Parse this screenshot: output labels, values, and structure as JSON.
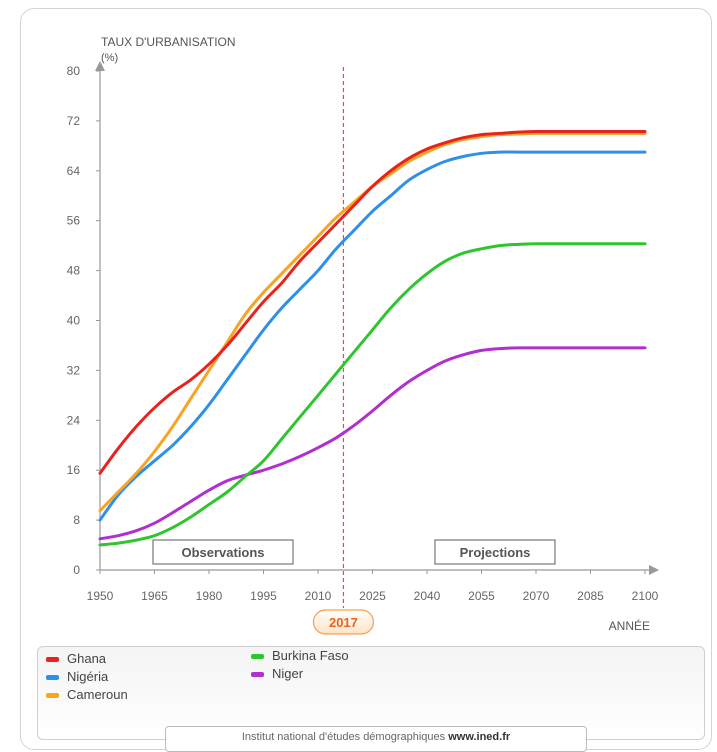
{
  "chart_data": {
    "type": "line",
    "ylabel_line1": "TAUX D'URBANISATION",
    "ylabel_line2": "(%)",
    "xlabel": "ANNÉE",
    "ylim": [
      0,
      80
    ],
    "xlim": [
      1950,
      2100
    ],
    "yticks": [
      0,
      8,
      16,
      24,
      32,
      40,
      48,
      56,
      64,
      72,
      80
    ],
    "xticks": [
      1950,
      1965,
      1980,
      1995,
      2010,
      2025,
      2040,
      2055,
      2070,
      2085,
      2100
    ],
    "marker_year": 2017,
    "marker_label": "2017",
    "region_labels": {
      "left": "Observations",
      "right": "Projections"
    },
    "series": [
      {
        "name": "Ghana",
        "color": "#e8231e",
        "x": [
          1950,
          1955,
          1960,
          1965,
          1970,
          1975,
          1980,
          1985,
          1990,
          1995,
          2000,
          2005,
          2010,
          2015,
          2020,
          2025,
          2030,
          2035,
          2040,
          2045,
          2050,
          2055,
          2060,
          2065,
          2070,
          2075,
          2080,
          2085,
          2090,
          2095,
          2100
        ],
        "y": [
          15.5,
          19.5,
          23,
          26,
          28.5,
          30.5,
          33,
          36,
          39.5,
          43,
          46,
          49.5,
          52.5,
          55.5,
          58.5,
          61.5,
          64,
          66,
          67.5,
          68.5,
          69.3,
          69.8,
          70,
          70.2,
          70.3,
          70.3,
          70.3,
          70.3,
          70.3,
          70.3,
          70.3
        ]
      },
      {
        "name": "Nigéria",
        "color": "#2f90e8",
        "x": [
          1950,
          1955,
          1960,
          1965,
          1970,
          1975,
          1980,
          1985,
          1990,
          1995,
          2000,
          2005,
          2010,
          2015,
          2020,
          2025,
          2030,
          2035,
          2040,
          2045,
          2050,
          2055,
          2060,
          2065,
          2070,
          2075,
          2080,
          2085,
          2090,
          2095,
          2100
        ],
        "y": [
          8,
          12,
          15,
          17.5,
          20,
          23,
          26.5,
          30.5,
          34.5,
          38.5,
          42,
          45,
          48,
          51.5,
          54.5,
          57.5,
          60,
          62.5,
          64.2,
          65.5,
          66.3,
          66.8,
          67,
          67,
          67,
          67,
          67,
          67,
          67,
          67,
          67
        ]
      },
      {
        "name": "Cameroun",
        "color": "#f8a422",
        "x": [
          1950,
          1955,
          1960,
          1965,
          1970,
          1975,
          1980,
          1985,
          1990,
          1995,
          2000,
          2005,
          2010,
          2015,
          2020,
          2025,
          2030,
          2035,
          2040,
          2045,
          2050,
          2055,
          2060,
          2065,
          2070,
          2075,
          2080,
          2085,
          2090,
          2095,
          2100
        ],
        "y": [
          9.5,
          12.5,
          15.5,
          19,
          23,
          27.5,
          32,
          36.5,
          41,
          44.5,
          47.5,
          50.5,
          53.5,
          56.5,
          59,
          61.5,
          63.5,
          65.5,
          67,
          68.2,
          69,
          69.5,
          69.8,
          69.9,
          70,
          70,
          70,
          70,
          70,
          70,
          70
        ]
      },
      {
        "name": "Burkina Faso",
        "color": "#2fc52f",
        "x": [
          1950,
          1955,
          1960,
          1965,
          1970,
          1975,
          1980,
          1985,
          1990,
          1995,
          2000,
          2005,
          2010,
          2015,
          2020,
          2025,
          2030,
          2035,
          2040,
          2045,
          2050,
          2055,
          2060,
          2065,
          2070,
          2075,
          2080,
          2085,
          2090,
          2095,
          2100
        ],
        "y": [
          4,
          4.3,
          4.8,
          5.5,
          6.8,
          8.5,
          10.5,
          12.5,
          15,
          17.5,
          21,
          24.5,
          28,
          31.5,
          35,
          38.5,
          42,
          45,
          47.5,
          49.5,
          50.8,
          51.5,
          52,
          52.2,
          52.3,
          52.3,
          52.3,
          52.3,
          52.3,
          52.3,
          52.3
        ]
      },
      {
        "name": "Niger",
        "color": "#b02fd0",
        "x": [
          1950,
          1955,
          1960,
          1965,
          1970,
          1975,
          1980,
          1985,
          1990,
          1995,
          2000,
          2005,
          2010,
          2015,
          2020,
          2025,
          2030,
          2035,
          2040,
          2045,
          2050,
          2055,
          2060,
          2065,
          2070,
          2075,
          2080,
          2085,
          2090,
          2095,
          2100
        ],
        "y": [
          5,
          5.5,
          6.3,
          7.5,
          9.2,
          11,
          12.8,
          14.3,
          15.2,
          16,
          17,
          18.2,
          19.6,
          21.2,
          23.2,
          25.5,
          28,
          30.2,
          32,
          33.5,
          34.5,
          35.2,
          35.5,
          35.6,
          35.6,
          35.6,
          35.6,
          35.6,
          35.6,
          35.6,
          35.6
        ]
      }
    ]
  },
  "legend": [
    {
      "label": "Ghana",
      "color": "#e8231e"
    },
    {
      "label": "Nigéria",
      "color": "#2f90e8"
    },
    {
      "label": "Cameroun",
      "color": "#f8a422"
    },
    {
      "label": "Burkina Faso",
      "color": "#2fc52f"
    },
    {
      "label": "Niger",
      "color": "#b02fd0"
    }
  ],
  "source": {
    "text": "Institut national d'études démographiques",
    "link": "www.ined.fr"
  }
}
